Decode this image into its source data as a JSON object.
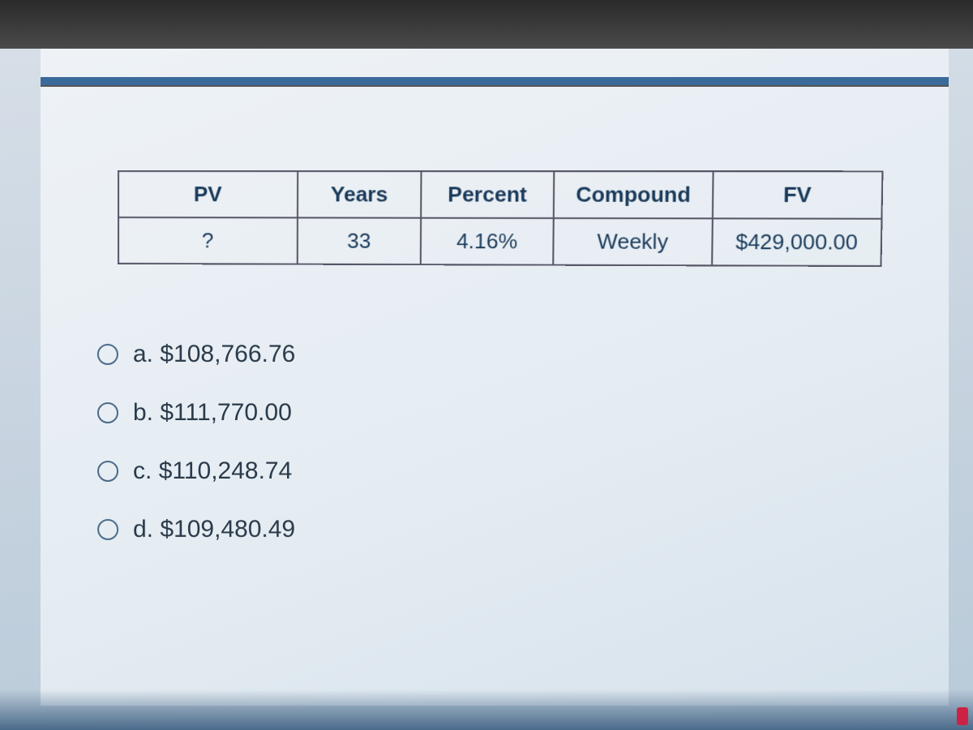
{
  "colors": {
    "accent_bar": "#3a6a9a",
    "border": "#556677",
    "text_header": "#1a3a5a",
    "text_body": "#2a3a4a",
    "background_start": "#eef2f6",
    "background_end": "#d6e2ec",
    "radio_border": "#4a6a8a"
  },
  "table": {
    "type": "table",
    "columns": [
      "PV",
      "Years",
      "Percent",
      "Compound",
      "FV"
    ],
    "rows": [
      [
        "?",
        "33",
        "4.16%",
        "Weekly",
        "$429,000.00"
      ]
    ],
    "header_fontsize": 26,
    "cell_fontsize": 26,
    "header_fontweight": "bold",
    "border_width": 2,
    "cell_padding": "12px 22px",
    "text_align": "center"
  },
  "options": [
    {
      "letter": "a.",
      "value": "$108,766.76",
      "selected": false
    },
    {
      "letter": "b.",
      "value": "$111,770.00",
      "selected": false
    },
    {
      "letter": "c.",
      "value": "$110,248.74",
      "selected": false
    },
    {
      "letter": "d.",
      "value": "$109,480.49",
      "selected": false
    }
  ],
  "typography": {
    "option_fontsize": 30,
    "font_family": "Arial"
  }
}
